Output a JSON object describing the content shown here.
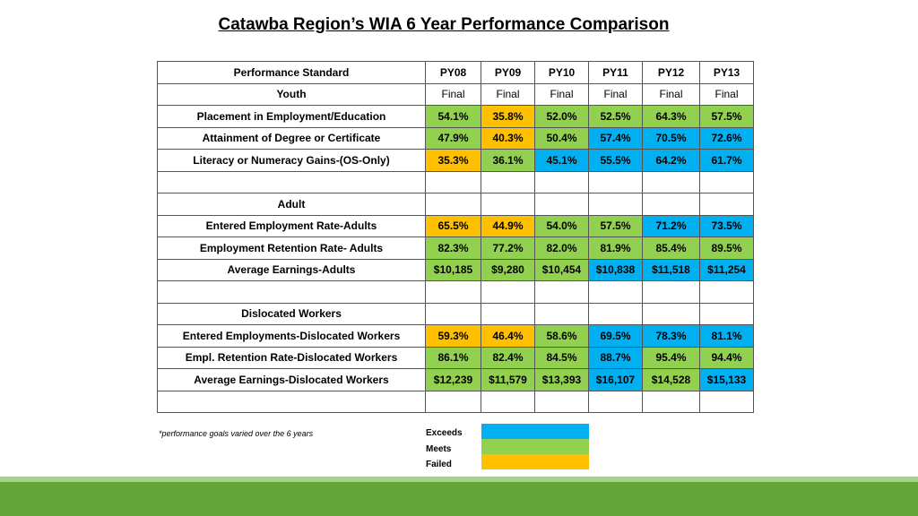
{
  "title": "Catawba Region’s WIA 6 Year Performance Comparison",
  "header": {
    "label": "Performance Standard",
    "years": [
      "PY08",
      "PY09",
      "PY10",
      "PY11",
      "PY12",
      "PY13"
    ]
  },
  "rows": [
    {
      "label": "Youth",
      "cells": [
        {
          "v": "Final",
          "s": ""
        },
        {
          "v": "Final",
          "s": ""
        },
        {
          "v": "Final",
          "s": ""
        },
        {
          "v": "Final",
          "s": ""
        },
        {
          "v": "Final",
          "s": ""
        },
        {
          "v": "Final",
          "s": ""
        }
      ]
    },
    {
      "label": "Placement in Employment/Education",
      "cells": [
        {
          "v": "54.1%",
          "s": "meets"
        },
        {
          "v": "35.8%",
          "s": "failed"
        },
        {
          "v": "52.0%",
          "s": "meets"
        },
        {
          "v": "52.5%",
          "s": "meets"
        },
        {
          "v": "64.3%",
          "s": "meets"
        },
        {
          "v": "57.5%",
          "s": "meets"
        }
      ]
    },
    {
      "label": "Attainment of Degree or Certificate",
      "cells": [
        {
          "v": "47.9%",
          "s": "meets"
        },
        {
          "v": "40.3%",
          "s": "failed"
        },
        {
          "v": "50.4%",
          "s": "meets"
        },
        {
          "v": "57.4%",
          "s": "exceeds"
        },
        {
          "v": "70.5%",
          "s": "exceeds"
        },
        {
          "v": "72.6%",
          "s": "exceeds"
        }
      ]
    },
    {
      "label": "Literacy or Numeracy Gains-(OS-Only)",
      "cells": [
        {
          "v": "35.3%",
          "s": "failed"
        },
        {
          "v": "36.1%",
          "s": "meets"
        },
        {
          "v": "45.1%",
          "s": "exceeds"
        },
        {
          "v": "55.5%",
          "s": "exceeds"
        },
        {
          "v": "64.2%",
          "s": "exceeds"
        },
        {
          "v": "61.7%",
          "s": "exceeds"
        }
      ]
    },
    {
      "label": "",
      "cells": [
        {
          "v": "",
          "s": ""
        },
        {
          "v": "",
          "s": ""
        },
        {
          "v": "",
          "s": ""
        },
        {
          "v": "",
          "s": ""
        },
        {
          "v": "",
          "s": ""
        },
        {
          "v": "",
          "s": ""
        }
      ]
    },
    {
      "label": "Adult",
      "cells": [
        {
          "v": "",
          "s": ""
        },
        {
          "v": "",
          "s": ""
        },
        {
          "v": "",
          "s": ""
        },
        {
          "v": "",
          "s": ""
        },
        {
          "v": "",
          "s": ""
        },
        {
          "v": "",
          "s": ""
        }
      ]
    },
    {
      "label": "Entered Employment Rate-Adults",
      "cells": [
        {
          "v": "65.5%",
          "s": "failed"
        },
        {
          "v": "44.9%",
          "s": "failed"
        },
        {
          "v": "54.0%",
          "s": "meets"
        },
        {
          "v": "57.5%",
          "s": "meets"
        },
        {
          "v": "71.2%",
          "s": "exceeds"
        },
        {
          "v": "73.5%",
          "s": "exceeds"
        }
      ]
    },
    {
      "label": "Employment Retention Rate- Adults",
      "cells": [
        {
          "v": "82.3%",
          "s": "meets"
        },
        {
          "v": "77.2%",
          "s": "meets"
        },
        {
          "v": "82.0%",
          "s": "meets"
        },
        {
          "v": "81.9%",
          "s": "meets"
        },
        {
          "v": "85.4%",
          "s": "meets"
        },
        {
          "v": "89.5%",
          "s": "meets"
        }
      ]
    },
    {
      "label": "Average Earnings-Adults",
      "cells": [
        {
          "v": "$10,185",
          "s": "meets"
        },
        {
          "v": "$9,280",
          "s": "meets"
        },
        {
          "v": "$10,454",
          "s": "meets"
        },
        {
          "v": "$10,838",
          "s": "exceeds"
        },
        {
          "v": "$11,518",
          "s": "exceeds"
        },
        {
          "v": "$11,254",
          "s": "exceeds"
        }
      ]
    },
    {
      "label": "",
      "cells": [
        {
          "v": "",
          "s": ""
        },
        {
          "v": "",
          "s": ""
        },
        {
          "v": "",
          "s": ""
        },
        {
          "v": "",
          "s": ""
        },
        {
          "v": "",
          "s": ""
        },
        {
          "v": "",
          "s": ""
        }
      ]
    },
    {
      "label": "Dislocated Workers",
      "cells": [
        {
          "v": "",
          "s": ""
        },
        {
          "v": "",
          "s": ""
        },
        {
          "v": "",
          "s": ""
        },
        {
          "v": "",
          "s": ""
        },
        {
          "v": "",
          "s": ""
        },
        {
          "v": "",
          "s": ""
        }
      ]
    },
    {
      "label": "Entered Employments-Dislocated Workers",
      "cells": [
        {
          "v": "59.3%",
          "s": "failed"
        },
        {
          "v": "46.4%",
          "s": "failed"
        },
        {
          "v": "58.6%",
          "s": "meets"
        },
        {
          "v": "69.5%",
          "s": "exceeds"
        },
        {
          "v": "78.3%",
          "s": "exceeds"
        },
        {
          "v": "81.1%",
          "s": "exceeds"
        }
      ]
    },
    {
      "label": "Empl. Retention Rate-Dislocated Workers",
      "cells": [
        {
          "v": "86.1%",
          "s": "meets"
        },
        {
          "v": "82.4%",
          "s": "meets"
        },
        {
          "v": "84.5%",
          "s": "meets"
        },
        {
          "v": "88.7%",
          "s": "exceeds"
        },
        {
          "v": "95.4%",
          "s": "meets"
        },
        {
          "v": "94.4%",
          "s": "meets"
        }
      ]
    },
    {
      "label": "Average Earnings-Dislocated Workers",
      "cells": [
        {
          "v": "$12,239",
          "s": "meets"
        },
        {
          "v": "$11,579",
          "s": "meets"
        },
        {
          "v": "$13,393",
          "s": "meets"
        },
        {
          "v": "$16,107",
          "s": "exceeds"
        },
        {
          "v": "$14,528",
          "s": "meets"
        },
        {
          "v": "$15,133",
          "s": "exceeds"
        }
      ]
    },
    {
      "label": "",
      "cells": [
        {
          "v": "",
          "s": ""
        },
        {
          "v": "",
          "s": ""
        },
        {
          "v": "",
          "s": ""
        },
        {
          "v": "",
          "s": ""
        },
        {
          "v": "",
          "s": ""
        },
        {
          "v": "",
          "s": ""
        }
      ]
    }
  ],
  "footnote": "*performance goals varied over the 6 years",
  "legend": [
    {
      "label": "Exceeds",
      "color": "#00b0f0"
    },
    {
      "label": "Meets",
      "color": "#92d050"
    },
    {
      "label": "Failed",
      "color": "#ffc000"
    }
  ],
  "colors": {
    "exceeds": "#00b0f0",
    "meets": "#92d050",
    "failed": "#ffc000",
    "band_dark": "#63a537",
    "band_light": "#a8d08d"
  }
}
